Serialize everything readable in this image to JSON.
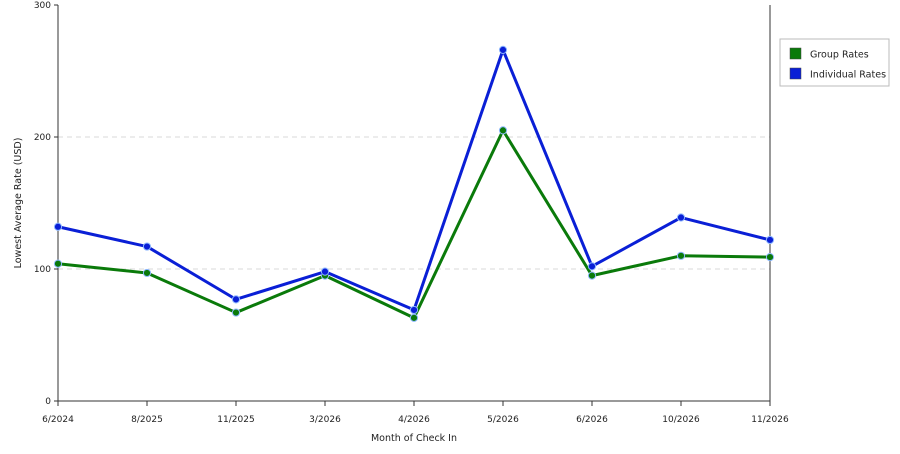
{
  "chart_data": {
    "type": "line",
    "categories": [
      "6/2024",
      "8/2025",
      "11/2025",
      "3/2026",
      "4/2026",
      "5/2026",
      "6/2026",
      "10/2026",
      "11/2026"
    ],
    "series": [
      {
        "name": "Group Rates",
        "color": "#0a7a0a",
        "values": [
          104,
          97,
          67,
          95,
          63,
          205,
          95,
          110,
          109
        ]
      },
      {
        "name": "Individual Rates",
        "color": "#0a1fd6",
        "values": [
          132,
          117,
          77,
          98,
          69,
          266,
          102,
          139,
          122
        ]
      }
    ],
    "xlabel": "Month of Check In",
    "ylabel": "Lowest Average Rate (USD)",
    "ylim": [
      0,
      300
    ],
    "yticks": [
      "0",
      "100",
      "200",
      "300"
    ],
    "grid": "horizontal dashed",
    "legend_position": "right"
  }
}
